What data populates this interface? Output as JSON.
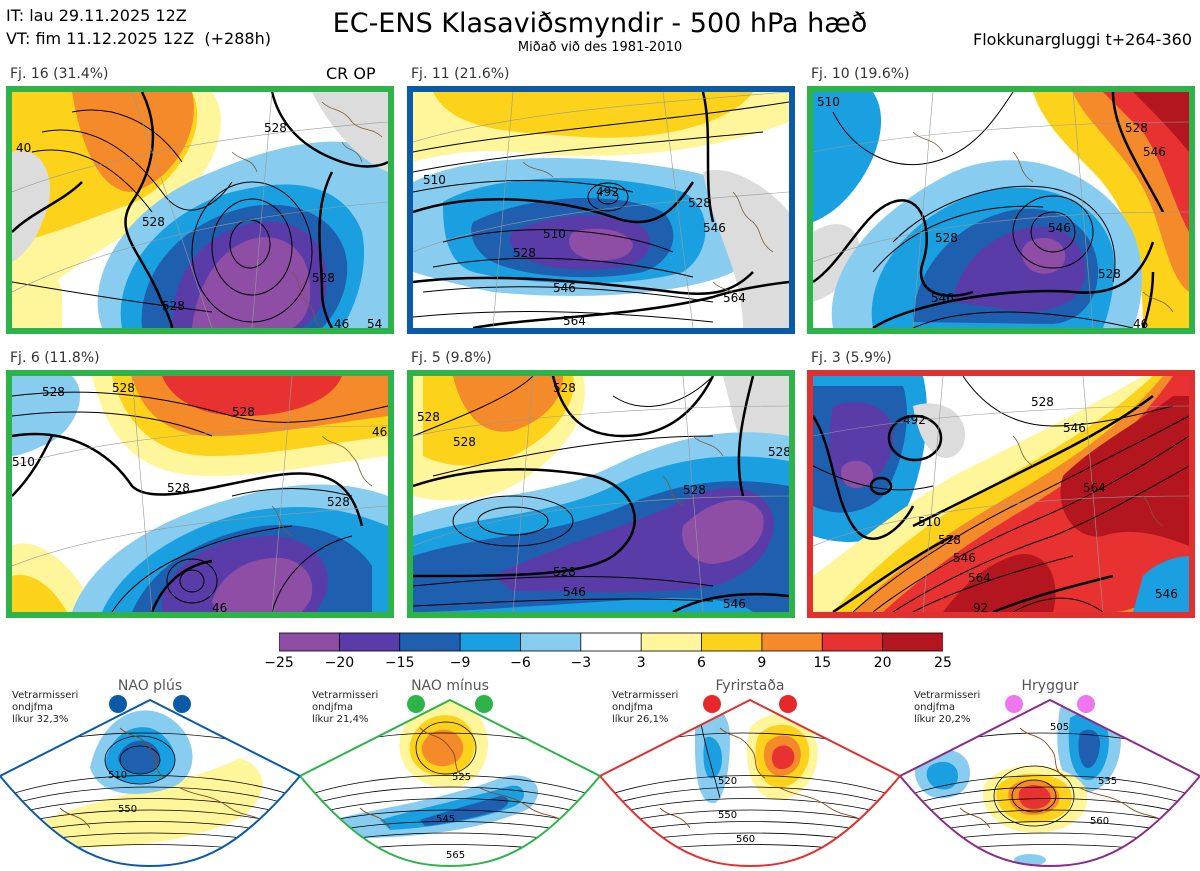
{
  "header": {
    "it_line": "IT: lau 29.11.2025 12Z",
    "vt_line": "VT: fim 11.12.2025 12Z  (+288h)",
    "title": "EC-ENS Klasaviðsmyndir - 500 hPa hæð",
    "subtitle": "Miðað við des 1981-2010",
    "window": "Flokkunargluggi t+264-360"
  },
  "clusters": [
    {
      "label": "Fj. 16 (31.4%)",
      "frame": "#2db34a",
      "extra": "CR OP",
      "contours": [
        "528",
        "528",
        "528",
        "528",
        "46",
        "54",
        "40"
      ]
    },
    {
      "label": "Fj. 11 (21.6%)",
      "frame": "#0a5aa8",
      "extra": "",
      "contours": [
        "492",
        "510",
        "528",
        "546",
        "564",
        "510",
        "528",
        "546",
        "564"
      ]
    },
    {
      "label": "Fj. 10 (19.6%)",
      "frame": "#2db34a",
      "extra": "",
      "contours": [
        "528",
        "546",
        "528",
        "546",
        "528",
        "546",
        "510",
        "46"
      ]
    },
    {
      "label": "Fj. 6 (11.8%)",
      "frame": "#2db34a",
      "extra": "",
      "contours": [
        "528",
        "528",
        "528",
        "528",
        "510",
        "528",
        "46",
        "46"
      ]
    },
    {
      "label": "Fj. 5 (9.8%)",
      "frame": "#2db34a",
      "extra": "",
      "contours": [
        "528",
        "528",
        "528",
        "528",
        "528",
        "546",
        "546",
        "528"
      ]
    },
    {
      "label": "Fj. 3 (5.9%)",
      "frame": "#e03030",
      "extra": "",
      "contours": [
        "492",
        "510",
        "528",
        "546",
        "564",
        "528",
        "546",
        "564",
        "546",
        "92"
      ]
    }
  ],
  "colorbar": {
    "colors": [
      "#8e4ea5",
      "#5a3ca8",
      "#1f5fb0",
      "#1aa0e0",
      "#88cdf0",
      "#ffffff",
      "#fff59a",
      "#fcd31a",
      "#f58a2a",
      "#e83232",
      "#b3161e"
    ],
    "ticks": [
      "−25",
      "−20",
      "−15",
      "−9",
      "−6",
      "−3",
      "3",
      "6",
      "9",
      "15",
      "20",
      "25"
    ]
  },
  "regimes": [
    {
      "name": "NAO plús",
      "frame": "#0a5aa8",
      "dot": "#0a5aa8",
      "note": "Vetrarmisseri\nondjfma\nlíkur 32,3%",
      "contours": [
        "510",
        "550"
      ]
    },
    {
      "name": "NAO mínus",
      "frame": "#2db34a",
      "dot": "#2db34a",
      "note": "Vetrarmisseri\nondjfma\nlíkur 21,4%",
      "contours": [
        "525",
        "545",
        "565"
      ]
    },
    {
      "name": "Fyrirstaða",
      "frame": "#e03030",
      "dot": "#e82828",
      "note": "Vetrarmisseri\nondjfma\nlíkur 26,1%",
      "contours": [
        "520",
        "550",
        "560"
      ]
    },
    {
      "name": "Hryggur",
      "frame": "#8a2a8a",
      "dot": "#ee77ee",
      "note": "Vetrarmisseri\nondjfma\nlíkur 20,2%",
      "contours": [
        "505",
        "535",
        "560"
      ]
    }
  ]
}
